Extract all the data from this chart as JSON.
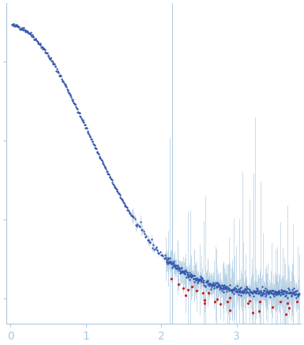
{
  "title": "",
  "xlabel": "",
  "ylabel": "",
  "xlim": [
    -0.05,
    3.85
  ],
  "xticks": [
    0,
    1,
    2,
    3
  ],
  "background_color": "#ffffff",
  "axis_color": "#aac8e0",
  "dot_color_main": "#3355aa",
  "dot_color_outlier": "#cc2222",
  "error_bar_color": "#aac8e0",
  "figsize": [
    3.85,
    4.37
  ],
  "dpi": 100,
  "n_outlier": 28,
  "seed": 42,
  "vline_x": 2.15
}
